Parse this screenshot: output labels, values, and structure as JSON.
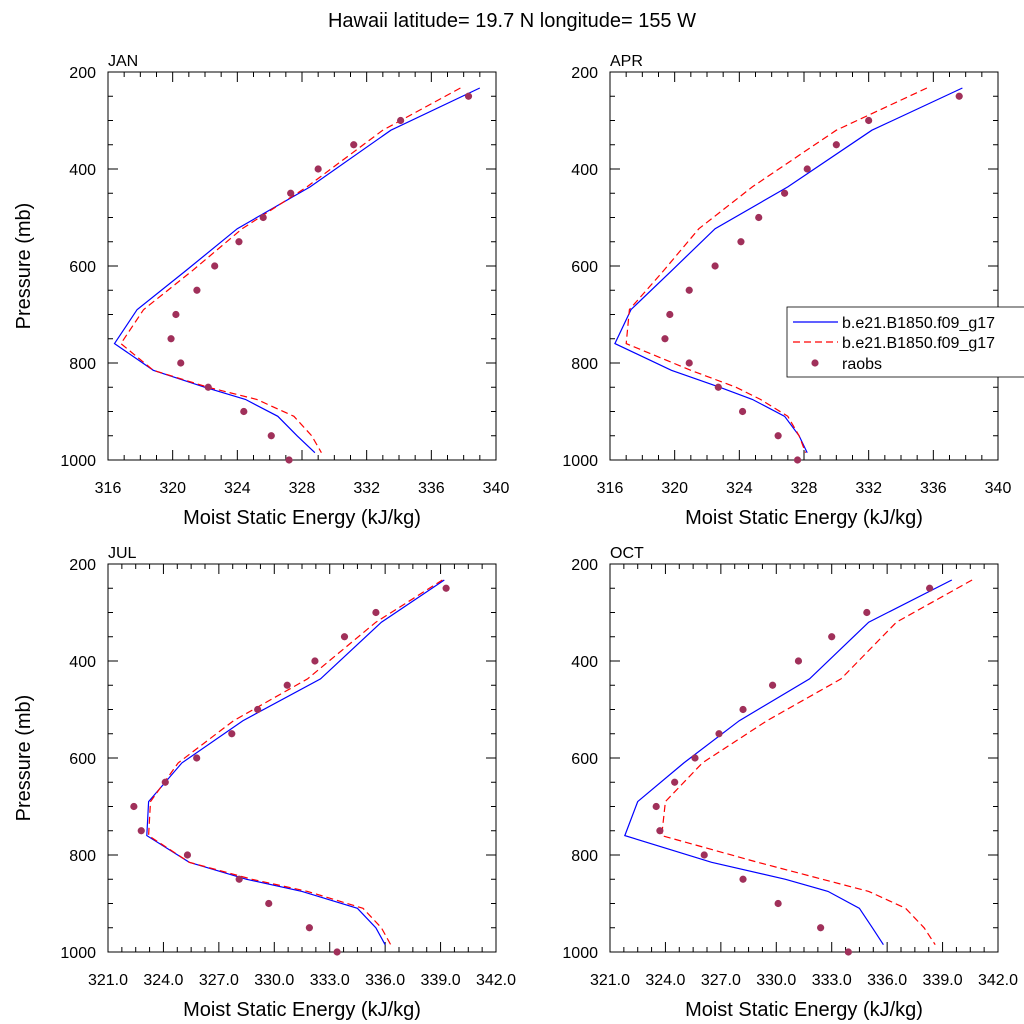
{
  "title": "Hawaii  latitude= 19.7 N longitude= 155 W",
  "colors": {
    "model1": "#0000ff",
    "model2": "#ff0000",
    "raobs": "#a0305a",
    "frame": "#000000"
  },
  "legend": {
    "entries": [
      {
        "label": "b.e21.B1850.f09_g17",
        "style": "solid-line",
        "color": "#0000ff"
      },
      {
        "label": "b.e21.B1850.f09_g17",
        "style": "dashed-line",
        "color": "#ff0000"
      },
      {
        "label": "raobs",
        "style": "marker",
        "color": "#a0305a"
      }
    ]
  },
  "chart_data": [
    {
      "type": "line",
      "panel": "JAN",
      "title": "JAN",
      "xlabel": "Moist Static Energy (kJ/kg)",
      "ylabel": "Pressure (mb)",
      "xlim": [
        316,
        340
      ],
      "ylim": [
        1000,
        200
      ],
      "xticks": [
        316,
        320,
        324,
        328,
        332,
        336,
        340
      ],
      "xticklabels": [
        "316",
        "320",
        "324",
        "328",
        "332",
        "336",
        "340"
      ],
      "yticks": [
        200,
        400,
        600,
        800,
        1000
      ],
      "yticklabels": [
        "200",
        "400",
        "600",
        "800",
        "1000"
      ],
      "series": [
        {
          "style": "solid",
          "color": "#0000ff",
          "x": [
            339.0,
            333.5,
            328.5,
            324.0,
            320.8,
            317.8,
            316.4,
            318.8,
            322.0,
            324.5,
            326.5,
            327.7,
            328.8
          ],
          "y": [
            233,
            320,
            437,
            523,
            610,
            690,
            760,
            815,
            850,
            875,
            910,
            950,
            985
          ]
        },
        {
          "style": "dashed",
          "color": "#ff0000",
          "x": [
            337.8,
            333.0,
            328.3,
            324.3,
            321.2,
            318.2,
            316.8,
            318.8,
            322.2,
            325.2,
            327.5,
            328.6,
            329.2
          ],
          "y": [
            233,
            320,
            437,
            523,
            610,
            690,
            760,
            815,
            850,
            875,
            910,
            950,
            985
          ]
        },
        {
          "style": "markers",
          "color": "#a0305a",
          "x": [
            338.3,
            334.1,
            331.2,
            329.0,
            327.3,
            325.6,
            324.1,
            322.6,
            321.5,
            320.2,
            319.9,
            320.5,
            322.2,
            324.4,
            326.1,
            327.2
          ],
          "y": [
            250,
            300,
            350,
            400,
            450,
            500,
            550,
            600,
            650,
            700,
            750,
            800,
            850,
            900,
            950,
            1000
          ]
        }
      ]
    },
    {
      "type": "line",
      "panel": "APR",
      "title": "APR",
      "xlabel": "Moist Static Energy (kJ/kg)",
      "ylabel": "",
      "xlim": [
        316,
        340
      ],
      "ylim": [
        1000,
        200
      ],
      "xticks": [
        316,
        320,
        324,
        328,
        332,
        336,
        340
      ],
      "xticklabels": [
        "316",
        "320",
        "324",
        "328",
        "332",
        "336",
        "340"
      ],
      "yticks": [
        200,
        400,
        600,
        800,
        1000
      ],
      "yticklabels": [
        "200",
        "400",
        "600",
        "800",
        "1000"
      ],
      "series": [
        {
          "style": "solid",
          "color": "#0000ff",
          "x": [
            337.8,
            332.2,
            327.0,
            322.5,
            319.8,
            317.3,
            316.3,
            319.8,
            322.8,
            324.8,
            326.8,
            327.7,
            328.2
          ],
          "y": [
            233,
            320,
            437,
            523,
            610,
            690,
            760,
            815,
            850,
            875,
            910,
            950,
            985
          ]
        },
        {
          "style": "dashed",
          "color": "#ff0000",
          "x": [
            335.6,
            330.0,
            324.8,
            321.5,
            319.3,
            317.2,
            317.0,
            321.0,
            323.8,
            325.3,
            327.0,
            327.7,
            328.1
          ],
          "y": [
            233,
            320,
            437,
            523,
            610,
            690,
            760,
            815,
            850,
            875,
            910,
            950,
            985
          ]
        },
        {
          "style": "markers",
          "color": "#a0305a",
          "x": [
            337.6,
            332.0,
            330.0,
            328.2,
            326.8,
            325.2,
            324.1,
            322.5,
            320.9,
            319.7,
            319.4,
            320.9,
            322.7,
            324.2,
            326.4,
            327.6
          ],
          "y": [
            250,
            300,
            350,
            400,
            450,
            500,
            550,
            600,
            650,
            700,
            750,
            800,
            850,
            900,
            950,
            1000
          ]
        }
      ]
    },
    {
      "type": "line",
      "panel": "JUL",
      "title": "JUL",
      "xlabel": "Moist Static Energy (kJ/kg)",
      "ylabel": "Pressure (mb)",
      "xlim": [
        321,
        342
      ],
      "ylim": [
        1000,
        200
      ],
      "xticks": [
        321,
        324,
        327,
        330,
        333,
        336,
        339,
        342
      ],
      "xticklabels": [
        "321.0",
        "324.0",
        "327.0",
        "330.0",
        "333.0",
        "336.0",
        "339.0",
        "342.0"
      ],
      "yticks": [
        200,
        400,
        600,
        800,
        1000
      ],
      "yticklabels": [
        "200",
        "400",
        "600",
        "800",
        "1000"
      ],
      "series": [
        {
          "style": "solid",
          "color": "#0000ff",
          "x": [
            339.2,
            335.8,
            332.5,
            328.3,
            325.0,
            323.2,
            323.1,
            325.4,
            328.5,
            331.5,
            334.5,
            335.5,
            336.0
          ],
          "y": [
            233,
            320,
            437,
            523,
            610,
            690,
            760,
            815,
            850,
            875,
            910,
            950,
            985
          ]
        },
        {
          "style": "dashed",
          "color": "#ff0000",
          "x": [
            339.1,
            335.5,
            331.8,
            327.8,
            324.8,
            323.3,
            323.2,
            325.4,
            328.8,
            331.8,
            334.8,
            335.8,
            336.3
          ],
          "y": [
            233,
            320,
            437,
            523,
            610,
            690,
            760,
            815,
            850,
            875,
            910,
            950,
            985
          ]
        },
        {
          "style": "markers",
          "color": "#a0305a",
          "x": [
            339.3,
            335.5,
            333.8,
            332.2,
            330.7,
            329.1,
            327.7,
            325.8,
            324.1,
            322.4,
            322.8,
            325.3,
            328.1,
            329.7,
            331.9,
            333.4
          ],
          "y": [
            250,
            300,
            350,
            400,
            450,
            500,
            550,
            600,
            650,
            700,
            750,
            800,
            850,
            900,
            950,
            1000
          ]
        }
      ]
    },
    {
      "type": "line",
      "panel": "OCT",
      "title": "OCT",
      "xlabel": "Moist Static Energy (kJ/kg)",
      "ylabel": "",
      "xlim": [
        321,
        342
      ],
      "ylim": [
        1000,
        200
      ],
      "xticks": [
        321,
        324,
        327,
        330,
        333,
        336,
        339,
        342
      ],
      "xticklabels": [
        "321.0",
        "324.0",
        "327.0",
        "330.0",
        "333.0",
        "336.0",
        "339.0",
        "342.0"
      ],
      "yticks": [
        200,
        400,
        600,
        800,
        1000
      ],
      "yticklabels": [
        "200",
        "400",
        "600",
        "800",
        "1000"
      ],
      "series": [
        {
          "style": "solid",
          "color": "#0000ff",
          "x": [
            339.5,
            335.0,
            331.8,
            328.0,
            325.0,
            322.5,
            321.8,
            326.5,
            330.5,
            332.8,
            334.5,
            335.2,
            335.8
          ],
          "y": [
            233,
            320,
            437,
            523,
            610,
            690,
            760,
            815,
            850,
            875,
            910,
            950,
            985
          ]
        },
        {
          "style": "dashed",
          "color": "#ff0000",
          "x": [
            340.6,
            336.5,
            333.5,
            329.5,
            326.0,
            324.0,
            323.8,
            329.0,
            332.5,
            335.0,
            337.0,
            338.0,
            338.6
          ],
          "y": [
            233,
            320,
            437,
            523,
            610,
            690,
            760,
            815,
            850,
            875,
            910,
            950,
            985
          ]
        },
        {
          "style": "markers",
          "color": "#a0305a",
          "x": [
            338.3,
            334.9,
            333.0,
            331.2,
            329.8,
            328.2,
            326.9,
            325.6,
            324.5,
            323.5,
            323.7,
            326.1,
            328.2,
            330.1,
            332.4,
            333.9
          ],
          "y": [
            250,
            300,
            350,
            400,
            450,
            500,
            550,
            600,
            650,
            700,
            750,
            800,
            850,
            900,
            950,
            1000
          ]
        }
      ]
    }
  ]
}
